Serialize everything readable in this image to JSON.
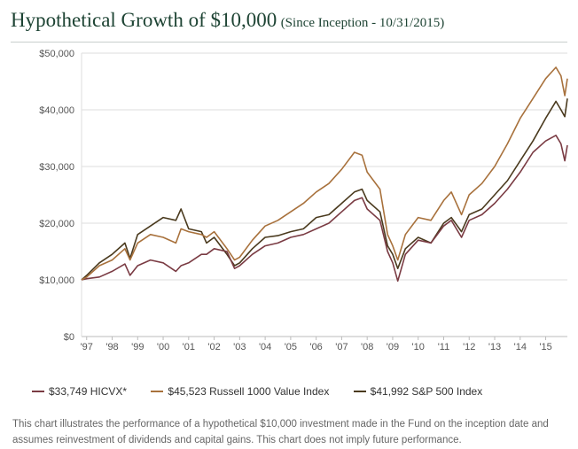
{
  "header": {
    "title": "Hypothetical Growth of $10,000",
    "subtitle": "(Since Inception - 10/31/2015)"
  },
  "chart_data": {
    "type": "line",
    "ylim": [
      0,
      50000
    ],
    "yticks": [
      0,
      10000,
      20000,
      30000,
      40000,
      50000
    ],
    "ytick_labels": [
      "$0",
      "$10,000",
      "$20,000",
      "$30,000",
      "$40,000",
      "$50,000"
    ],
    "xlim": [
      1996.8,
      2015.85
    ],
    "xticks": [
      1997,
      1998,
      1999,
      2000,
      2001,
      2002,
      2003,
      2004,
      2005,
      2006,
      2007,
      2008,
      2009,
      2010,
      2011,
      2012,
      2013,
      2014,
      2015
    ],
    "xtick_labels": [
      "'97",
      "'98",
      "'99",
      "'00",
      "'01",
      "'02",
      "'03",
      "'04",
      "'05",
      "'06",
      "'07",
      "'08",
      "'09",
      "'10",
      "'11",
      "'12",
      "'13",
      "'14",
      "'15"
    ],
    "grid": true,
    "series": [
      {
        "name": "S&P 500 Index",
        "label": "$41,992 S&P 500 Index",
        "color": "#4a3a1e",
        "x": [
          1996.8,
          1997.0,
          1997.5,
          1998.0,
          1998.5,
          1998.7,
          1999.0,
          1999.5,
          2000.0,
          2000.5,
          2000.7,
          2001.0,
          2001.5,
          2001.7,
          2002.0,
          2002.5,
          2002.8,
          2003.0,
          2003.5,
          2004.0,
          2004.5,
          2005.0,
          2005.5,
          2006.0,
          2006.5,
          2007.0,
          2007.5,
          2007.8,
          2008.0,
          2008.5,
          2008.8,
          2009.0,
          2009.2,
          2009.5,
          2010.0,
          2010.5,
          2011.0,
          2011.3,
          2011.7,
          2012.0,
          2012.5,
          2013.0,
          2013.5,
          2014.0,
          2014.5,
          2015.0,
          2015.4,
          2015.6,
          2015.75,
          2015.85
        ],
        "y": [
          10000,
          10800,
          13000,
          14500,
          16500,
          13800,
          18000,
          19500,
          21000,
          20500,
          22500,
          19000,
          18500,
          16500,
          17500,
          14500,
          12500,
          13000,
          15500,
          17500,
          17800,
          18500,
          19000,
          21000,
          21500,
          23500,
          25500,
          26000,
          24000,
          22000,
          16000,
          14500,
          12000,
          15500,
          17500,
          16500,
          20000,
          21000,
          18500,
          21500,
          22500,
          25000,
          27500,
          31000,
          34500,
          38500,
          41500,
          40000,
          38800,
          41992
        ]
      },
      {
        "name": "HICVX",
        "label": "$33,749 HICVX*",
        "color": "#7a3b43",
        "x": [
          1996.8,
          1997.0,
          1997.5,
          1998.0,
          1998.5,
          1998.7,
          1999.0,
          1999.5,
          2000.0,
          2000.5,
          2000.7,
          2001.0,
          2001.5,
          2001.7,
          2002.0,
          2002.5,
          2002.8,
          2003.0,
          2003.5,
          2004.0,
          2004.5,
          2005.0,
          2005.5,
          2006.0,
          2006.5,
          2007.0,
          2007.5,
          2007.8,
          2008.0,
          2008.5,
          2008.8,
          2009.0,
          2009.2,
          2009.5,
          2010.0,
          2010.5,
          2011.0,
          2011.3,
          2011.7,
          2012.0,
          2012.5,
          2013.0,
          2013.5,
          2014.0,
          2014.5,
          2015.0,
          2015.4,
          2015.6,
          2015.75,
          2015.85
        ],
        "y": [
          10000,
          10200,
          10500,
          11500,
          12800,
          10800,
          12500,
          13500,
          13000,
          11500,
          12500,
          13000,
          14500,
          14500,
          15500,
          15000,
          12000,
          12500,
          14500,
          16000,
          16500,
          17500,
          18000,
          19000,
          20000,
          22000,
          24000,
          24500,
          22500,
          20500,
          15000,
          13000,
          9800,
          14500,
          17000,
          16500,
          19500,
          20500,
          17500,
          20500,
          21500,
          23500,
          26000,
          29000,
          32500,
          34500,
          35500,
          34000,
          31000,
          33749
        ]
      },
      {
        "name": "Russell 1000 Value Index",
        "label": "$45,523 Russell 1000 Value Index",
        "color": "#a8713c",
        "x": [
          1996.8,
          1997.0,
          1997.5,
          1998.0,
          1998.5,
          1998.7,
          1999.0,
          1999.5,
          2000.0,
          2000.5,
          2000.7,
          2001.0,
          2001.5,
          2001.7,
          2002.0,
          2002.5,
          2002.8,
          2003.0,
          2003.5,
          2004.0,
          2004.5,
          2005.0,
          2005.5,
          2006.0,
          2006.5,
          2007.0,
          2007.5,
          2007.8,
          2008.0,
          2008.5,
          2008.8,
          2009.0,
          2009.2,
          2009.5,
          2010.0,
          2010.5,
          2011.0,
          2011.3,
          2011.7,
          2012.0,
          2012.5,
          2013.0,
          2013.5,
          2014.0,
          2014.5,
          2015.0,
          2015.4,
          2015.6,
          2015.75,
          2015.85
        ],
        "y": [
          10000,
          10500,
          12500,
          13500,
          15500,
          13500,
          16500,
          18000,
          17500,
          16500,
          19000,
          18500,
          18000,
          17500,
          18500,
          15500,
          13500,
          14000,
          17000,
          19500,
          20500,
          22000,
          23500,
          25500,
          27000,
          29500,
          32500,
          32000,
          29000,
          26000,
          18000,
          16000,
          13500,
          18000,
          21000,
          20500,
          24000,
          25500,
          21500,
          25000,
          27000,
          30000,
          34000,
          38500,
          42000,
          45500,
          47500,
          46000,
          42500,
          45523
        ]
      }
    ]
  },
  "legend": {
    "items": [
      {
        "label": "$33,749 HICVX*",
        "color": "#7a3b43"
      },
      {
        "label": "$45,523 Russell 1000 Value Index",
        "color": "#a8713c"
      },
      {
        "label": "$41,992 S&P 500 Index",
        "color": "#4a3a1e"
      }
    ]
  },
  "footnote": "This chart illustrates the performance of a hypothetical $10,000 investment made in the Fund on the inception date and assumes reinvestment of dividends and capital gains. This chart does not imply future performance."
}
